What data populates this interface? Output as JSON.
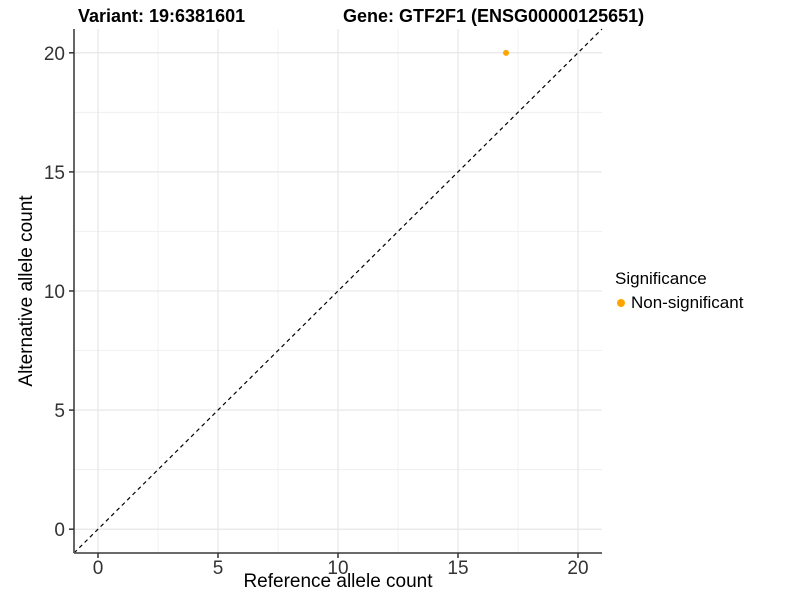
{
  "chart_data": {
    "type": "scatter",
    "title_left": "Variant: 19:6381601",
    "title_right": "Gene: GTF2F1 (ENSG00000125651)",
    "xlabel": "Reference allele count",
    "ylabel": "Alternative allele count",
    "xlim": [
      -1,
      21
    ],
    "ylim": [
      -1,
      21
    ],
    "xticks": [
      0,
      5,
      10,
      15,
      20
    ],
    "yticks": [
      0,
      5,
      10,
      15,
      20
    ],
    "grid": "major and minor gridlines, white background",
    "reference_line": {
      "type": "identity y=x",
      "from": -1,
      "to": 21,
      "style": "dashed",
      "color": "#000000"
    },
    "series": [
      {
        "name": "Non-significant",
        "color": "#FFA500",
        "point_radius": 3,
        "points": [
          [
            17,
            20
          ]
        ]
      }
    ],
    "legend": {
      "title": "Significance",
      "position": "right",
      "entries": [
        {
          "label": "Non-significant",
          "color": "#FFA500"
        }
      ]
    },
    "style": {
      "axis_line_color": "#555555",
      "tick_color": "#333333",
      "tick_label_color": "#333333",
      "grid_major_color": "#E4E4E4",
      "grid_minor_color": "#EFEFEF",
      "background": "#FFFFFF"
    }
  }
}
